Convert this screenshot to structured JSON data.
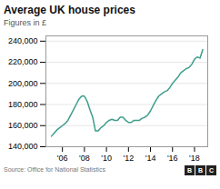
{
  "chart_data": {
    "type": "line",
    "title": "Average UK house prices",
    "subtitle": "Figures in £",
    "source": "Source: Office for National Statistics",
    "logo": [
      "B",
      "B",
      "C"
    ],
    "color": "#3d9e8c",
    "grid": true,
    "xlim": [
      2004.5,
      2019.2
    ],
    "xticks": [
      {
        "value": 2006,
        "label": "'06"
      },
      {
        "value": 2008,
        "label": "'08"
      },
      {
        "value": 2010,
        "label": "'10"
      },
      {
        "value": 2012,
        "label": "'12"
      },
      {
        "value": 2014,
        "label": "'14"
      },
      {
        "value": 2016,
        "label": "'16"
      },
      {
        "value": 2018,
        "label": "'18"
      }
    ],
    "ylim": [
      140000,
      245000
    ],
    "yticks": [
      {
        "value": 140000,
        "label": "140,000"
      },
      {
        "value": 160000,
        "label": "160,000"
      },
      {
        "value": 180000,
        "label": "180,000"
      },
      {
        "value": 200000,
        "label": "200,000"
      },
      {
        "value": 220000,
        "label": "220,000"
      },
      {
        "value": 240000,
        "label": "240,000"
      }
    ],
    "x": [
      2005.0,
      2005.25,
      2005.5,
      2005.75,
      2006.0,
      2006.25,
      2006.5,
      2006.75,
      2007.0,
      2007.25,
      2007.5,
      2007.75,
      2008.0,
      2008.25,
      2008.5,
      2008.75,
      2009.0,
      2009.25,
      2009.5,
      2009.75,
      2010.0,
      2010.25,
      2010.5,
      2010.75,
      2011.0,
      2011.25,
      2011.5,
      2011.75,
      2012.0,
      2012.25,
      2012.5,
      2012.75,
      2013.0,
      2013.25,
      2013.5,
      2013.75,
      2014.0,
      2014.25,
      2014.5,
      2014.75,
      2015.0,
      2015.25,
      2015.5,
      2015.75,
      2016.0,
      2016.25,
      2016.5,
      2016.75,
      2017.0,
      2017.25,
      2017.5,
      2017.75,
      2018.0,
      2018.25,
      2018.5,
      2018.75
    ],
    "values": [
      150000,
      153000,
      156000,
      158000,
      160000,
      162000,
      165000,
      170000,
      175000,
      180000,
      185000,
      188000,
      188000,
      183000,
      175000,
      168000,
      155000,
      155000,
      158000,
      160000,
      163000,
      165000,
      166000,
      165000,
      165000,
      168000,
      168000,
      165000,
      163000,
      163000,
      165000,
      165000,
      165000,
      167000,
      168000,
      170000,
      174000,
      179000,
      184000,
      188000,
      190000,
      192000,
      193000,
      196000,
      200000,
      203000,
      206000,
      210000,
      212000,
      214000,
      215000,
      218000,
      223000,
      225000,
      224000,
      232000
    ]
  }
}
